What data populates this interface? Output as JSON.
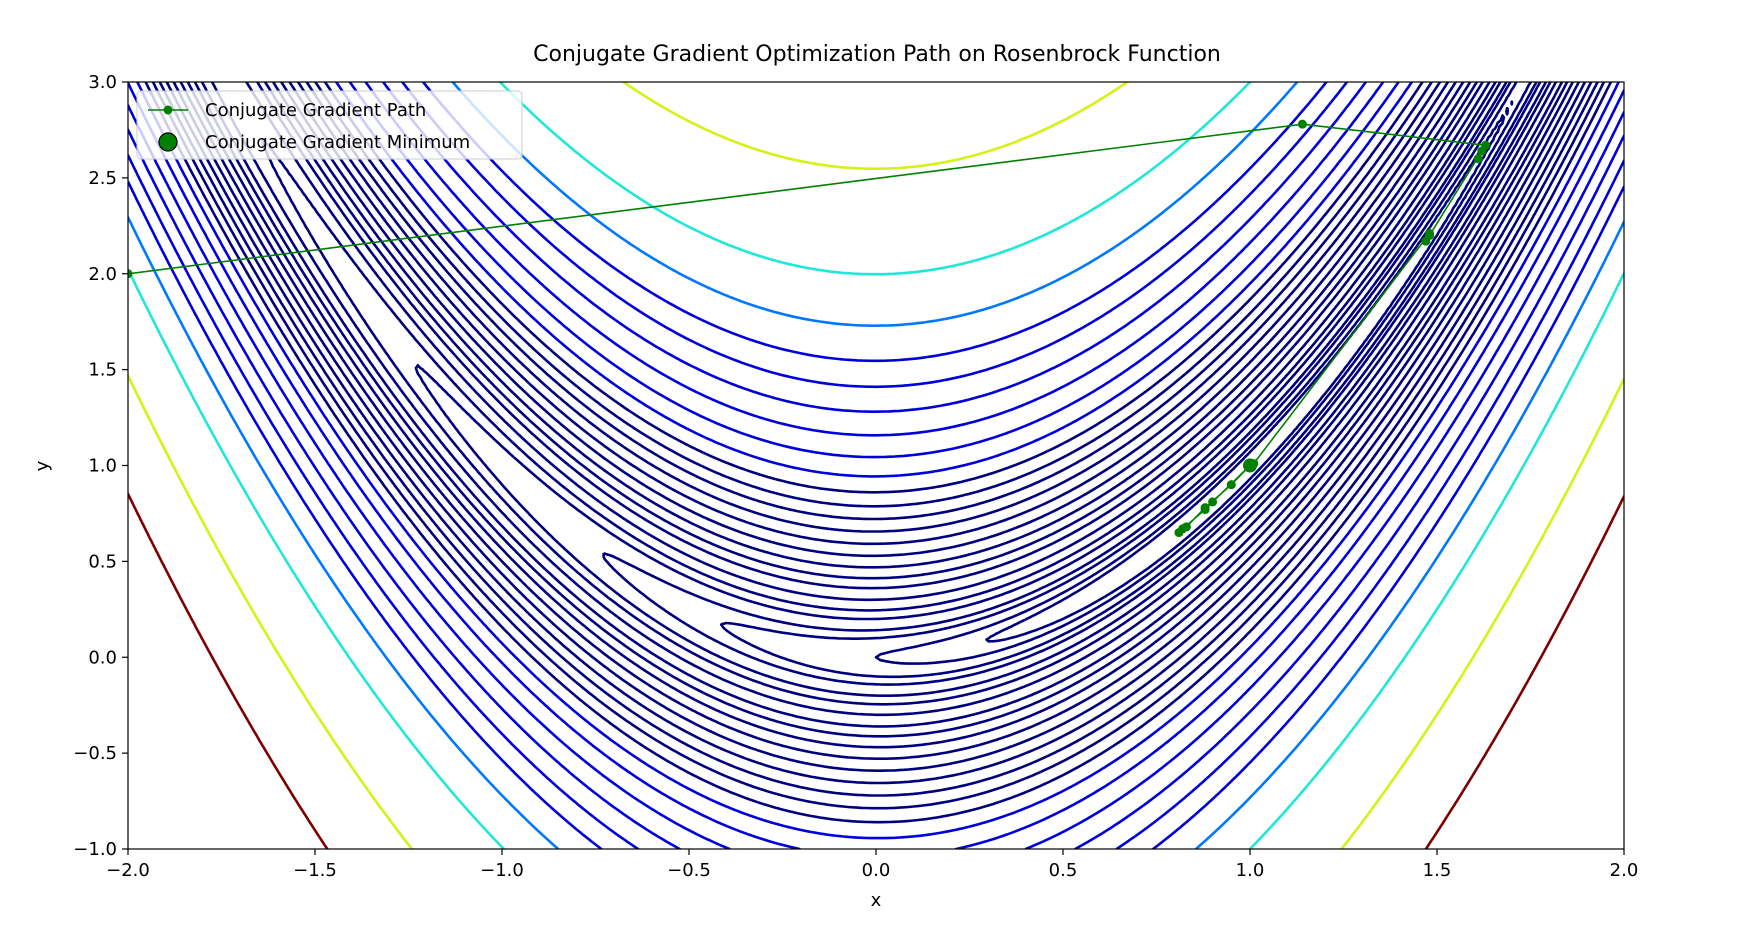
{
  "chart_data": {
    "type": "contour",
    "title": "Conjugate Gradient Optimization Path on Rosenbrock Function",
    "xlabel": "x",
    "ylabel": "y",
    "xlim": [
      -2.0,
      2.0
    ],
    "ylim": [
      -1.0,
      3.0
    ],
    "x_ticks": [
      -2.0,
      -1.5,
      -1.0,
      -0.5,
      0.0,
      0.5,
      1.0,
      1.5,
      2.0
    ],
    "x_tick_labels": [
      "−2.0",
      "−1.5",
      "−1.0",
      "−0.5",
      "0.0",
      "0.5",
      "1.0",
      "1.5",
      "2.0"
    ],
    "y_ticks": [
      -1.0,
      -0.5,
      0.0,
      0.5,
      1.0,
      1.5,
      2.0,
      2.5,
      3.0
    ],
    "y_tick_labels": [
      "−1.0",
      "−0.5",
      "0.0",
      "0.5",
      "1.0",
      "1.5",
      "2.0",
      "2.5",
      "3.0"
    ],
    "grid": false,
    "legend_position": "upper-left",
    "contour": {
      "function": "(1 - x)^2 + 100 (y - x^2)^2",
      "level_bands": [
        {
          "levels": [
            0.5,
            1,
            2,
            3,
            5,
            7,
            10,
            14,
            18,
            23,
            29,
            36,
            44,
            53,
            63,
            75
          ],
          "color": "#00007f"
        },
        {
          "levels": [
            90,
            110,
            135,
            165,
            200,
            240
          ],
          "color": "#0000dd"
        },
        {
          "levels": [
            300
          ],
          "color": "#0078ff"
        },
        {
          "levels": [
            400
          ],
          "color": "#1fe8d8"
        },
        {
          "levels": [
            650
          ],
          "color": "#d6f214"
        },
        {
          "levels": [
            1000
          ],
          "color": "#7f0000"
        }
      ]
    },
    "series": [
      {
        "name": "Conjugate Gradient Path",
        "color": "#008000",
        "points": [
          [
            -2.0,
            2.0
          ],
          [
            1.14,
            2.78
          ],
          [
            1.63,
            2.67
          ],
          [
            1.61,
            2.6
          ],
          [
            1.62,
            2.64
          ],
          [
            1.48,
            2.2
          ],
          [
            1.47,
            2.17
          ],
          [
            1.48,
            2.21
          ],
          [
            1.01,
            1.01
          ],
          [
            1.0,
            1.0
          ],
          [
            0.9,
            0.81
          ],
          [
            0.88,
            0.77
          ],
          [
            0.82,
            0.67
          ],
          [
            0.81,
            0.65
          ],
          [
            0.83,
            0.68
          ],
          [
            0.88,
            0.78
          ],
          [
            0.95,
            0.9
          ],
          [
            1.0,
            1.0
          ]
        ]
      }
    ],
    "minimum": {
      "name": "Conjugate Gradient Minimum",
      "color": "#008000",
      "point": [
        1.0,
        1.0
      ]
    }
  }
}
